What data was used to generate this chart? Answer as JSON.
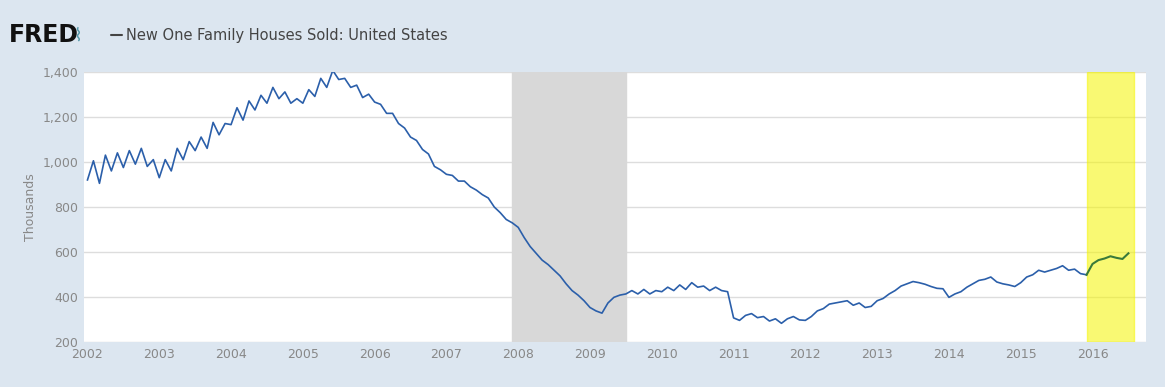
{
  "title": "New One Family Houses Sold: United States",
  "ylabel": "Thousands",
  "ylim": [
    200,
    1400
  ],
  "yticks": [
    200,
    400,
    600,
    800,
    1000,
    1200,
    1400
  ],
  "bg_color": "#dce6f0",
  "plot_bg_color": "#ffffff",
  "line_color_main": "#2b5faa",
  "line_color_highlight": "#3a7a3a",
  "recession_start": 2007.917,
  "recession_end": 2009.5,
  "highlight_start": 2015.917,
  "highlight_end": 2016.583,
  "highlight_color": "#f5f500",
  "highlight_alpha": 0.55,
  "xlim_start": 2001.95,
  "xlim_end": 2016.75,
  "series": {
    "dates": [
      2002.0,
      2002.083,
      2002.167,
      2002.25,
      2002.333,
      2002.417,
      2002.5,
      2002.583,
      2002.667,
      2002.75,
      2002.833,
      2002.917,
      2003.0,
      2003.083,
      2003.167,
      2003.25,
      2003.333,
      2003.417,
      2003.5,
      2003.583,
      2003.667,
      2003.75,
      2003.833,
      2003.917,
      2004.0,
      2004.083,
      2004.167,
      2004.25,
      2004.333,
      2004.417,
      2004.5,
      2004.583,
      2004.667,
      2004.75,
      2004.833,
      2004.917,
      2005.0,
      2005.083,
      2005.167,
      2005.25,
      2005.333,
      2005.417,
      2005.5,
      2005.583,
      2005.667,
      2005.75,
      2005.833,
      2005.917,
      2006.0,
      2006.083,
      2006.167,
      2006.25,
      2006.333,
      2006.417,
      2006.5,
      2006.583,
      2006.667,
      2006.75,
      2006.833,
      2006.917,
      2007.0,
      2007.083,
      2007.167,
      2007.25,
      2007.333,
      2007.417,
      2007.5,
      2007.583,
      2007.667,
      2007.75,
      2007.833,
      2007.917,
      2008.0,
      2008.083,
      2008.167,
      2008.25,
      2008.333,
      2008.417,
      2008.5,
      2008.583,
      2008.667,
      2008.75,
      2008.833,
      2008.917,
      2009.0,
      2009.083,
      2009.167,
      2009.25,
      2009.333,
      2009.417,
      2009.5,
      2009.583,
      2009.667,
      2009.75,
      2009.833,
      2009.917,
      2010.0,
      2010.083,
      2010.167,
      2010.25,
      2010.333,
      2010.417,
      2010.5,
      2010.583,
      2010.667,
      2010.75,
      2010.833,
      2010.917,
      2011.0,
      2011.083,
      2011.167,
      2011.25,
      2011.333,
      2011.417,
      2011.5,
      2011.583,
      2011.667,
      2011.75,
      2011.833,
      2011.917,
      2012.0,
      2012.083,
      2012.167,
      2012.25,
      2012.333,
      2012.417,
      2012.5,
      2012.583,
      2012.667,
      2012.75,
      2012.833,
      2012.917,
      2013.0,
      2013.083,
      2013.167,
      2013.25,
      2013.333,
      2013.417,
      2013.5,
      2013.583,
      2013.667,
      2013.75,
      2013.833,
      2013.917,
      2014.0,
      2014.083,
      2014.167,
      2014.25,
      2014.333,
      2014.417,
      2014.5,
      2014.583,
      2014.667,
      2014.75,
      2014.833,
      2014.917,
      2015.0,
      2015.083,
      2015.167,
      2015.25,
      2015.333,
      2015.417,
      2015.5,
      2015.583,
      2015.667,
      2015.75,
      2015.833,
      2015.917,
      2016.0,
      2016.083,
      2016.167,
      2016.25,
      2016.333,
      2016.417,
      2016.5
    ],
    "values": [
      920,
      1005,
      905,
      1030,
      960,
      1040,
      975,
      1050,
      990,
      1060,
      980,
      1010,
      930,
      1010,
      960,
      1060,
      1010,
      1090,
      1050,
      1110,
      1060,
      1175,
      1120,
      1170,
      1165,
      1240,
      1185,
      1270,
      1230,
      1295,
      1260,
      1330,
      1280,
      1310,
      1260,
      1280,
      1260,
      1320,
      1290,
      1370,
      1330,
      1405,
      1365,
      1370,
      1330,
      1340,
      1285,
      1300,
      1265,
      1255,
      1215,
      1215,
      1170,
      1150,
      1110,
      1095,
      1055,
      1035,
      980,
      965,
      945,
      940,
      915,
      915,
      890,
      875,
      855,
      840,
      800,
      775,
      745,
      730,
      710,
      665,
      625,
      595,
      565,
      545,
      520,
      495,
      460,
      430,
      410,
      385,
      355,
      340,
      330,
      375,
      400,
      410,
      415,
      430,
      415,
      435,
      415,
      430,
      425,
      445,
      430,
      455,
      435,
      465,
      445,
      450,
      430,
      445,
      430,
      425,
      309,
      298,
      320,
      328,
      310,
      315,
      295,
      305,
      285,
      305,
      315,
      300,
      298,
      315,
      340,
      350,
      370,
      375,
      380,
      385,
      365,
      375,
      355,
      360,
      385,
      395,
      415,
      430,
      450,
      460,
      470,
      465,
      458,
      448,
      440,
      438,
      400,
      415,
      425,
      445,
      460,
      475,
      480,
      490,
      468,
      460,
      455,
      448,
      465,
      490,
      500,
      520,
      512,
      520,
      528,
      540,
      520,
      525,
      505,
      500,
      548,
      565,
      572,
      582,
      575,
      570,
      595
    ]
  }
}
